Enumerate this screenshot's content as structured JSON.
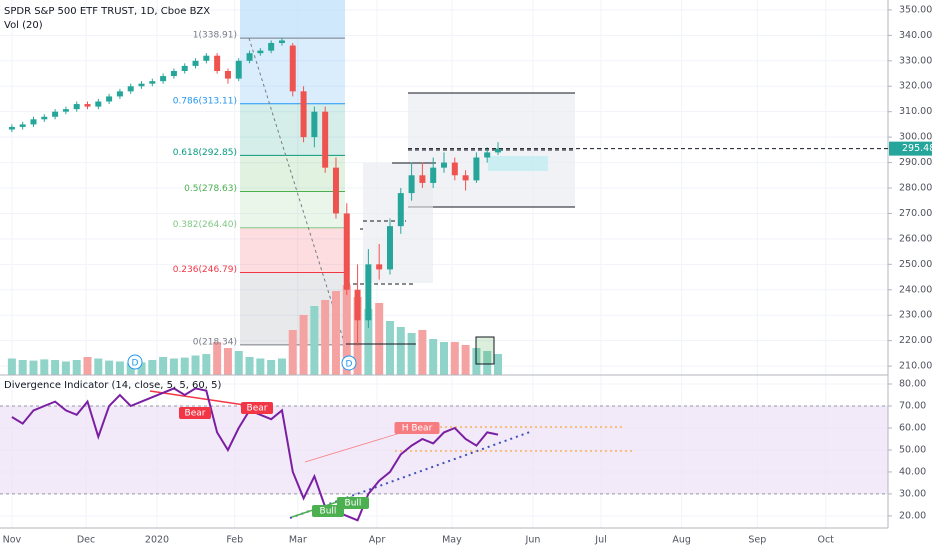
{
  "chart_data": [
    {
      "type": "candlestick",
      "title": "SPDR S&P 500 ETF TRUST, 1D, Cboe BZX",
      "x": [
        0,
        3,
        6,
        9,
        12,
        15,
        18,
        21,
        24,
        27,
        30,
        33,
        36,
        39,
        42,
        45,
        48,
        51,
        54,
        57,
        60,
        63,
        66,
        69,
        72,
        75,
        78,
        81,
        84,
        87,
        90,
        93,
        96,
        99,
        102,
        105,
        108,
        111,
        114,
        117,
        120,
        123,
        126,
        129,
        132,
        135
      ],
      "open": [
        303,
        304,
        305,
        307,
        308,
        310,
        311,
        313,
        312,
        314,
        316,
        318,
        320,
        321,
        322,
        324,
        326,
        328,
        330,
        332,
        326,
        323,
        330,
        333,
        334,
        337,
        336,
        318,
        300,
        310,
        288,
        270,
        240,
        228,
        250,
        248,
        265,
        278,
        285,
        282,
        288,
        290,
        285,
        283,
        292,
        294
      ],
      "high": [
        305,
        306,
        308,
        309,
        311,
        312,
        314,
        314,
        315,
        317,
        319,
        321,
        322,
        323,
        325,
        327,
        329,
        331,
        333,
        333,
        327,
        331,
        334,
        335,
        338,
        339,
        337,
        320,
        312,
        312,
        292,
        274,
        250,
        256,
        258,
        268,
        280,
        290,
        290,
        292,
        294,
        292,
        287,
        294,
        296,
        298
      ],
      "low": [
        302,
        303,
        304,
        306,
        307,
        309,
        310,
        311,
        311,
        313,
        315,
        317,
        319,
        320,
        321,
        323,
        325,
        327,
        329,
        325,
        321,
        322,
        329,
        332,
        333,
        336,
        316,
        298,
        296,
        286,
        268,
        238,
        218,
        225,
        244,
        246,
        262,
        275,
        280,
        280,
        286,
        283,
        279,
        282,
        290,
        293
      ],
      "close": [
        304,
        305,
        307,
        308,
        310,
        311,
        313,
        312,
        314,
        316,
        318,
        320,
        321,
        322,
        324,
        326,
        328,
        330,
        332,
        326,
        323,
        330,
        333,
        334,
        337,
        338,
        318,
        300,
        310,
        288,
        270,
        240,
        228,
        250,
        248,
        265,
        278,
        285,
        282,
        288,
        290,
        285,
        283,
        292,
        294,
        295.48
      ],
      "up_color": "#26a69a",
      "down_color": "#ef5350",
      "last_price": 295.48,
      "xlim": [
        -3.3,
        243.3
      ],
      "ylim": [
        206.5,
        353.9
      ],
      "yticks": [
        {
          "value": 350,
          "label": "350.00"
        },
        {
          "value": 340,
          "label": "340.00"
        },
        {
          "value": 330,
          "label": "330.00"
        },
        {
          "value": 320,
          "label": "320.00"
        },
        {
          "value": 310,
          "label": "310.00"
        },
        {
          "value": 300,
          "label": "300.00"
        },
        {
          "value": 290,
          "label": "290.00"
        },
        {
          "value": 280,
          "label": "280.00"
        },
        {
          "value": 270,
          "label": "270.00"
        },
        {
          "value": 260,
          "label": "260.00"
        },
        {
          "value": 250,
          "label": "250.00"
        },
        {
          "value": 240,
          "label": "240.00"
        },
        {
          "value": 230,
          "label": "230.00"
        },
        {
          "value": 220,
          "label": "220.00"
        },
        {
          "value": 210,
          "label": "210.00"
        }
      ],
      "fib_levels": [
        {
          "label": "1(338.91)",
          "value": 338.91,
          "color": "#787b86"
        },
        {
          "label": "0.786(313.11)",
          "value": 313.11,
          "color": "#2196f3"
        },
        {
          "label": "0.618(292.85)",
          "value": 292.85,
          "color": "#089981"
        },
        {
          "label": "0.5(278.63)",
          "value": 278.63,
          "color": "#4caf50"
        },
        {
          "label": "0.382(264.40)",
          "value": 264.4,
          "color": "#81c784"
        },
        {
          "label": "0.236(246.79)",
          "value": 246.79,
          "color": "#f23645"
        },
        {
          "label": "0(218.34)",
          "value": 218.34,
          "color": "#787b86"
        }
      ],
      "markers": [
        "D",
        "D"
      ]
    },
    {
      "type": "bar",
      "title": "Vol (20)",
      "x": [
        0,
        3,
        6,
        9,
        12,
        15,
        18,
        21,
        24,
        27,
        30,
        33,
        36,
        39,
        42,
        45,
        48,
        51,
        54,
        57,
        60,
        63,
        66,
        69,
        72,
        75,
        78,
        81,
        84,
        87,
        90,
        93,
        96,
        99,
        102,
        105,
        108,
        111,
        114,
        117,
        120,
        123,
        126,
        129,
        132,
        135
      ],
      "values": [
        55,
        50,
        48,
        52,
        50,
        45,
        50,
        60,
        55,
        48,
        45,
        40,
        42,
        50,
        60,
        55,
        58,
        65,
        70,
        110,
        90,
        80,
        60,
        55,
        50,
        55,
        150,
        200,
        230,
        250,
        280,
        300,
        260,
        220,
        240,
        180,
        160,
        140,
        150,
        120,
        110,
        110,
        100,
        90,
        80,
        70
      ],
      "up_color": "#8fd3c9",
      "down_color": "#f4a3a2"
    },
    {
      "type": "line",
      "title": "Divergence Indicator (14, close, 5, 5, 60, 5)",
      "x": [
        0,
        3,
        6,
        9,
        12,
        15,
        18,
        21,
        24,
        27,
        30,
        33,
        36,
        39,
        42,
        45,
        48,
        51,
        54,
        57,
        60,
        63,
        66,
        69,
        72,
        75,
        78,
        81,
        84,
        87,
        90,
        93,
        96,
        99,
        102,
        105,
        108,
        111,
        114,
        117,
        120,
        123,
        126,
        129,
        132,
        135
      ],
      "values": [
        65,
        62,
        68,
        70,
        72,
        68,
        66,
        72,
        56,
        70,
        75,
        70,
        72,
        74,
        76,
        78,
        75,
        78,
        77,
        58,
        50,
        60,
        68,
        66,
        64,
        68,
        40,
        28,
        38,
        24,
        22,
        20,
        18,
        30,
        36,
        40,
        48,
        52,
        55,
        53,
        58,
        60,
        55,
        52,
        58,
        57
      ],
      "color": "#7b1fa2",
      "xlim": [
        -3.3,
        243.3
      ],
      "ylim": [
        14.5,
        84.1
      ],
      "yticks": [
        {
          "value": 80,
          "label": "80.00"
        },
        {
          "value": 70,
          "label": "70.00"
        },
        {
          "value": 60,
          "label": "60.00"
        },
        {
          "value": 50,
          "label": "50.00"
        },
        {
          "value": 40,
          "label": "40.00"
        },
        {
          "value": 30,
          "label": "30.00"
        },
        {
          "value": 20,
          "label": "20.00"
        }
      ],
      "band": [
        30,
        70
      ],
      "xticks": [
        {
          "value": 0,
          "label": "Nov"
        },
        {
          "value": 20.6,
          "label": "Dec"
        },
        {
          "value": 40.3,
          "label": "2020"
        },
        {
          "value": 61.9,
          "label": "Feb"
        },
        {
          "value": 79.4,
          "label": "Mar"
        },
        {
          "value": 101.4,
          "label": "Apr"
        },
        {
          "value": 122.2,
          "label": "May"
        },
        {
          "value": 144.7,
          "label": "Jun"
        },
        {
          "value": 163.6,
          "label": "Jul"
        },
        {
          "value": 186,
          "label": "Aug"
        },
        {
          "value": 207,
          "label": "Sep"
        },
        {
          "value": 226,
          "label": "Oct"
        }
      ],
      "annotations": [
        {
          "text": "Bear",
          "color": "#f23645"
        },
        {
          "text": "Bear",
          "color": "#f23645"
        },
        {
          "text": "H Bear",
          "color": "#f77c80"
        },
        {
          "text": "Bull",
          "color": "#4caf50"
        },
        {
          "text": "Bull",
          "color": "#4caf50"
        }
      ]
    }
  ]
}
